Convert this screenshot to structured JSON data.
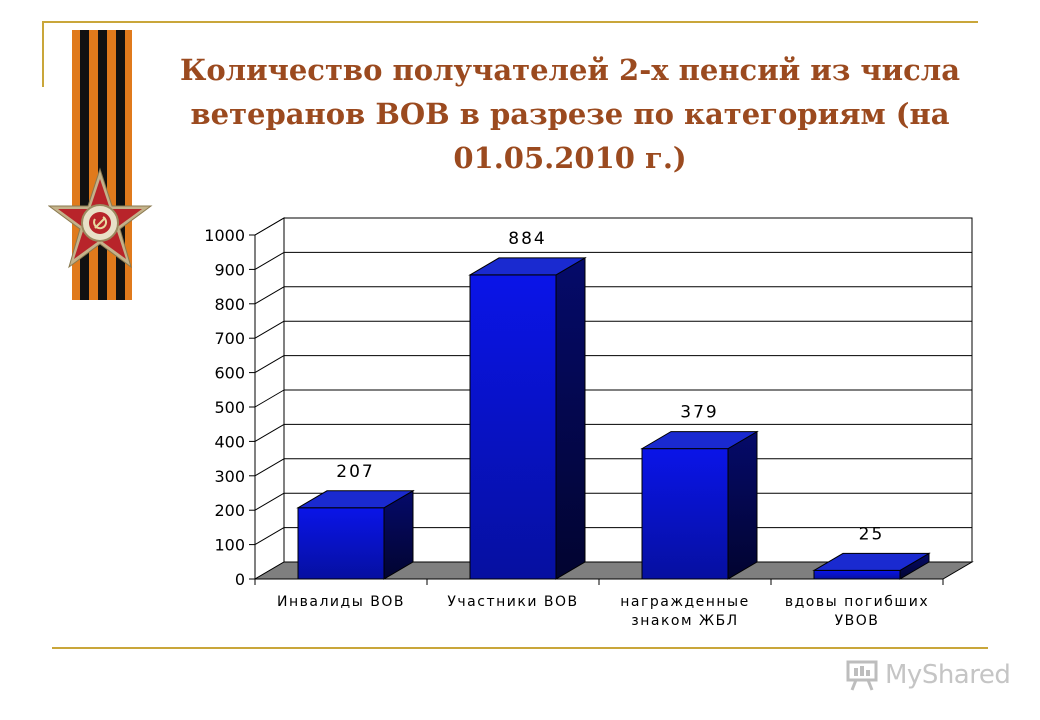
{
  "slide": {
    "title": "Количество получателей 2-х пенсий из числа ветеранов ВОВ в разрезе по категориям (на 01.05.2010 г.)"
  },
  "watermark": {
    "text": "MyShared",
    "icon": "presentation-board-icon"
  },
  "decor": {
    "icon": "order-of-patriotic-war-icon",
    "ribbon": "st-george-ribbon"
  },
  "colors": {
    "title": "#9b4a1f",
    "bar_front": "#0a14e8",
    "bar_top": "#1a2ad0",
    "bar_side": "#050a6a",
    "rule": "#c9a63a",
    "floor": "#7f7f7f"
  },
  "chart_data": {
    "type": "bar",
    "style": "3d-column",
    "categories": [
      [
        "Инвалиды ВОВ"
      ],
      [
        "Участники ВОВ"
      ],
      [
        "награжденные",
        "знаком ЖБЛ"
      ],
      [
        "вдовы погибших",
        "УВОВ"
      ]
    ],
    "values": [
      207,
      884,
      379,
      25
    ],
    "data_labels": [
      "207",
      "884",
      "379",
      "25"
    ],
    "ylim": [
      0,
      1000
    ],
    "yticks": [
      0,
      100,
      200,
      300,
      400,
      500,
      600,
      700,
      800,
      900,
      1000
    ],
    "ytick_labels": [
      "0",
      "100",
      "200",
      "300",
      "400",
      "500",
      "600",
      "700",
      "800",
      "900",
      "1000"
    ],
    "grid": true,
    "legend": "none"
  }
}
